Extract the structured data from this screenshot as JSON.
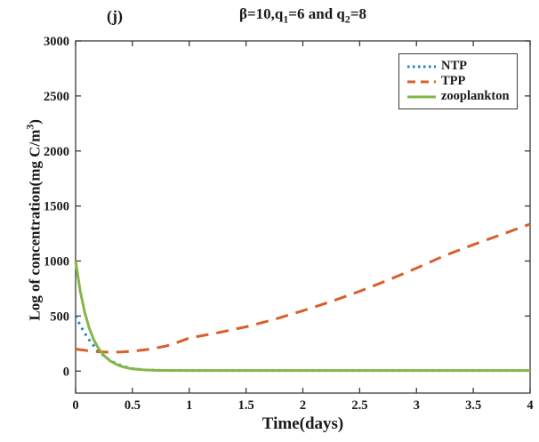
{
  "figure": {
    "corner_label": "(j)",
    "background": "#ffffff"
  },
  "chart_data": {
    "type": "line",
    "title_segments": [
      {
        "text": "β=10,q"
      },
      {
        "text": "1",
        "sub": true
      },
      {
        "text": "=6 and q"
      },
      {
        "text": "2",
        "sub": true
      },
      {
        "text": "=8"
      }
    ],
    "xlabel": "Time(days)",
    "ylabel_segments": [
      {
        "text": "Log of concentration(mg C/m"
      },
      {
        "text": "3",
        "sup": true
      },
      {
        "text": ")"
      }
    ],
    "xlim": [
      0,
      4
    ],
    "ylim": [
      -200,
      3000
    ],
    "xticks": [
      0,
      0.5,
      1,
      1.5,
      2,
      2.5,
      3,
      3.5,
      4
    ],
    "xtick_labels": [
      "0",
      "0.5",
      "1",
      "1.5",
      "2",
      "2.5",
      "3",
      "3.5",
      "4"
    ],
    "yticks": [
      0,
      500,
      1000,
      1500,
      2000,
      2500,
      3000
    ],
    "ytick_labels": [
      "0",
      "500",
      "1000",
      "1500",
      "2000",
      "2500",
      "3000"
    ],
    "grid": false,
    "legend_position": "top-right",
    "axis_color": "#3a3a3a",
    "series": [
      {
        "name": "NTP",
        "color": "#2080c0",
        "style": "dotted",
        "points": [
          [
            0,
            500
          ],
          [
            0.04,
            417
          ],
          [
            0.08,
            345
          ],
          [
            0.12,
            283
          ],
          [
            0.16,
            230
          ],
          [
            0.2,
            183
          ],
          [
            0.25,
            138
          ],
          [
            0.3,
            100
          ],
          [
            0.35,
            72
          ],
          [
            0.4,
            50
          ],
          [
            0.45,
            34
          ],
          [
            0.5,
            22
          ],
          [
            0.6,
            12
          ],
          [
            0.7,
            8
          ],
          [
            0.85,
            6
          ],
          [
            1,
            5
          ],
          [
            1.5,
            5
          ],
          [
            2,
            5
          ],
          [
            2.5,
            5
          ],
          [
            3,
            5
          ],
          [
            3.5,
            5
          ],
          [
            4,
            5
          ]
        ]
      },
      {
        "name": "TPP",
        "color": "#d85f28",
        "style": "dashed",
        "points": [
          [
            0,
            200
          ],
          [
            0.1,
            186
          ],
          [
            0.2,
            176
          ],
          [
            0.3,
            172
          ],
          [
            0.4,
            174
          ],
          [
            0.5,
            180
          ],
          [
            0.65,
            198
          ],
          [
            0.8,
            228
          ],
          [
            0.9,
            262
          ],
          [
            1,
            300
          ],
          [
            1.25,
            348
          ],
          [
            1.5,
            402
          ],
          [
            1.75,
            470
          ],
          [
            2,
            548
          ],
          [
            2.25,
            632
          ],
          [
            2.5,
            725
          ],
          [
            2.75,
            826
          ],
          [
            3,
            935
          ],
          [
            3.25,
            1050
          ],
          [
            3.5,
            1148
          ],
          [
            3.75,
            1242
          ],
          [
            4,
            1335
          ]
        ]
      },
      {
        "name": "zooplankton",
        "color": "#85b648",
        "style": "solid",
        "points": [
          [
            0,
            1000
          ],
          [
            0.04,
            731
          ],
          [
            0.08,
            535
          ],
          [
            0.12,
            391
          ],
          [
            0.16,
            286
          ],
          [
            0.2,
            209
          ],
          [
            0.25,
            141
          ],
          [
            0.3,
            96
          ],
          [
            0.35,
            65
          ],
          [
            0.4,
            44
          ],
          [
            0.45,
            30
          ],
          [
            0.5,
            20
          ],
          [
            0.6,
            11
          ],
          [
            0.7,
            7
          ],
          [
            0.85,
            5
          ],
          [
            1,
            5
          ],
          [
            1.5,
            5
          ],
          [
            2,
            5
          ],
          [
            2.5,
            5
          ],
          [
            3,
            5
          ],
          [
            3.5,
            5
          ],
          [
            4,
            5
          ]
        ]
      }
    ]
  }
}
